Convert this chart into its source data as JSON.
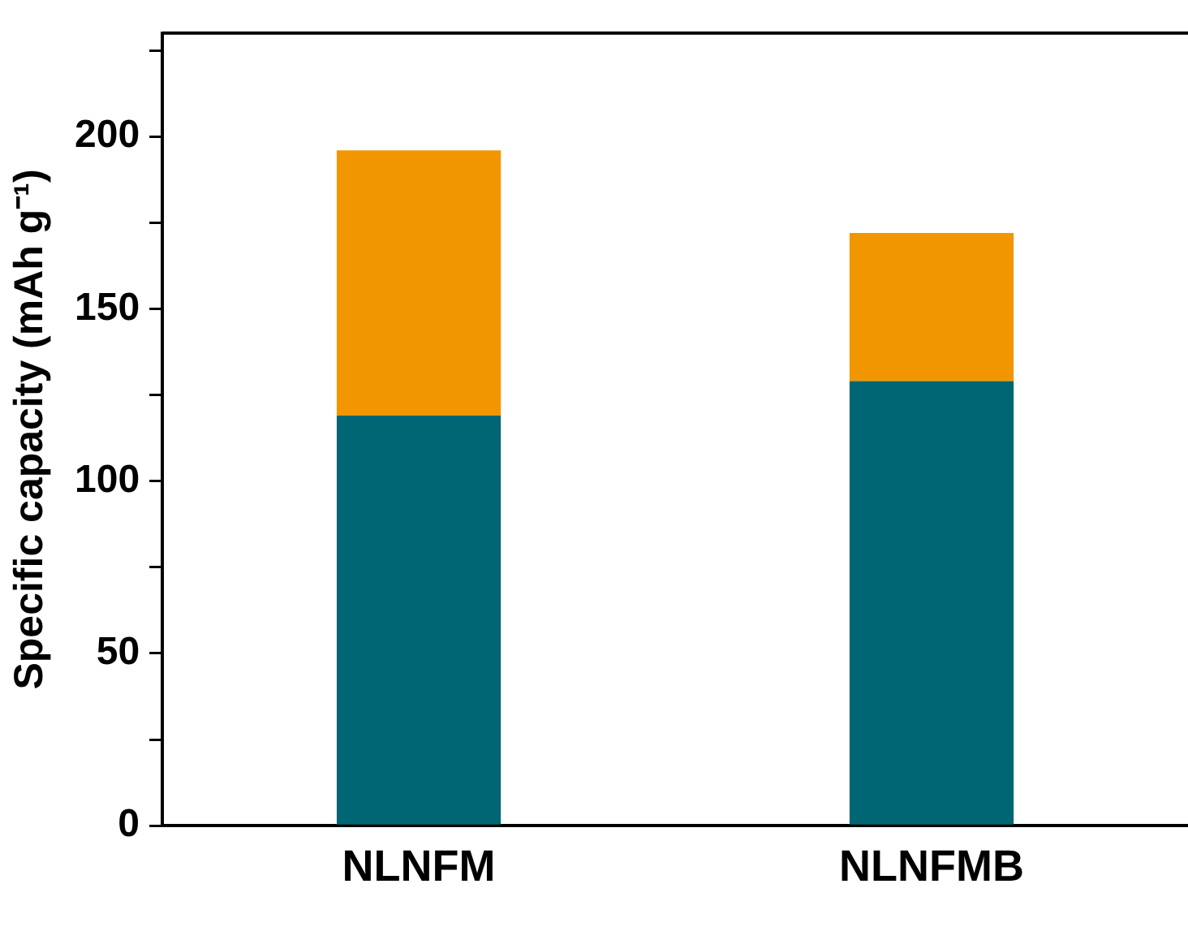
{
  "chart_data": {
    "type": "bar",
    "stacked": true,
    "ylabel": "Specific capacity (mAh g⁻¹)",
    "categories": [
      "NLNFM",
      "NLNFMB"
    ],
    "series": [
      {
        "color": "#006674",
        "values": [
          119,
          129
        ]
      },
      {
        "color": "#f29600",
        "values": [
          77,
          43
        ]
      }
    ],
    "ylim": [
      0,
      230
    ],
    "yticks": [
      0,
      {
        "value": 25,
        "label": null
      },
      50,
      {
        "value": 75,
        "label": null
      },
      100,
      {
        "value": 125,
        "label": null
      },
      150,
      {
        "value": 175,
        "label": null
      },
      200,
      {
        "value": 225,
        "label": null
      }
    ],
    "grid": false,
    "legend": false
  }
}
